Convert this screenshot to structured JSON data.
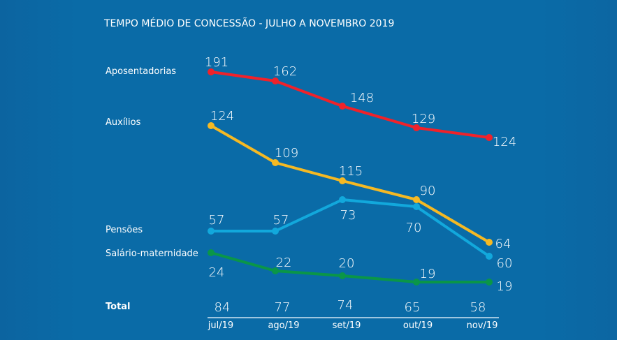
{
  "chart_data": {
    "type": "line",
    "title": "TEMPO MÉDIO DE CONCESSÃO - JULHO A NOVEMBRO 2019",
    "categories": [
      "jul/19",
      "ago/19",
      "set/19",
      "out/19",
      "nov/19"
    ],
    "series": [
      {
        "name": "Aposentadorias",
        "color": "#f0222a",
        "values": [
          191,
          162,
          148,
          129,
          124
        ]
      },
      {
        "name": "Auxílios",
        "color": "#f5b923",
        "values": [
          124,
          109,
          115,
          90,
          64
        ]
      },
      {
        "name": "Pensões",
        "color": "#12a8dc",
        "values": [
          57,
          57,
          73,
          70,
          60
        ]
      },
      {
        "name": "Salário-maternidade",
        "color": "#0a9648",
        "values": [
          24,
          22,
          20,
          19,
          19
        ]
      }
    ],
    "total": {
      "label": "Total",
      "values": [
        84,
        77,
        74,
        65,
        58
      ]
    },
    "grid": false,
    "legend": "left-inline"
  }
}
